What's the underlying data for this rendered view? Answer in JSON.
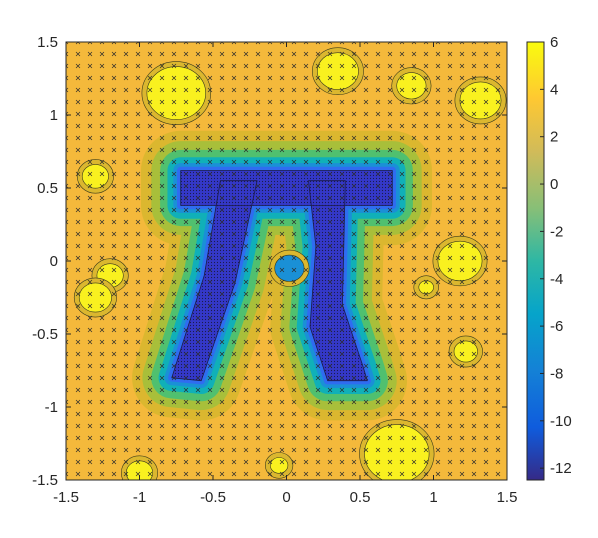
{
  "chart_data": {
    "type": "heatmap",
    "subtype": "filled-contour",
    "title": "",
    "xlabel": "",
    "ylabel": "",
    "xlim": [
      -1.5,
      1.5
    ],
    "ylim": [
      -1.5,
      1.5
    ],
    "x_ticks": [
      "-1.5",
      "-1",
      "-0.5",
      "0",
      "0.5",
      "1",
      "1.5"
    ],
    "y_ticks": [
      "1.5",
      "1",
      "0.5",
      "0",
      "-0.5",
      "-1",
      "-1.5"
    ],
    "x_tick_values": [
      -1.5,
      -1,
      -0.5,
      0,
      0.5,
      1,
      1.5
    ],
    "y_tick_values": [
      1.5,
      1,
      0.5,
      0,
      -0.5,
      -1,
      -1.5
    ],
    "colorbar": {
      "limits": [
        -12.5,
        6
      ],
      "tick_values": [
        6,
        4,
        2,
        0,
        -2,
        -4,
        -6,
        -8,
        -10,
        -12
      ],
      "tick_labels": [
        "6",
        "4",
        "2",
        "0",
        "-2",
        "-4",
        "-6",
        "-8",
        "-10",
        "-12"
      ],
      "colormap": "parula"
    },
    "contour_levels": [
      {
        "min": 3,
        "color": "#f4b93b"
      },
      {
        "min": 2,
        "color": "#dbb72f"
      },
      {
        "min": 0,
        "color": "#a8bf3a"
      },
      {
        "min": -2,
        "color": "#50c06f"
      },
      {
        "min": -4,
        "color": "#10b0b8"
      },
      {
        "min": -6,
        "color": "#1a90d6"
      },
      {
        "min": -9,
        "color": "#2f6cf0"
      },
      {
        "min": -11,
        "color": "#3438c8"
      }
    ],
    "pi_shape": {
      "top_bar": [
        [
          -0.72,
          0.62
        ],
        [
          0.72,
          0.62
        ],
        [
          0.72,
          0.38
        ],
        [
          -0.72,
          0.38
        ]
      ],
      "left_leg": [
        [
          -0.45,
          0.55
        ],
        [
          -0.2,
          0.55
        ],
        [
          -0.35,
          -0.15
        ],
        [
          -0.58,
          -0.82
        ],
        [
          -0.78,
          -0.8
        ],
        [
          -0.56,
          -0.1
        ]
      ],
      "right_leg": [
        [
          0.15,
          0.55
        ],
        [
          0.4,
          0.55
        ],
        [
          0.38,
          -0.3
        ],
        [
          0.52,
          -0.72
        ],
        [
          0.55,
          -0.82
        ],
        [
          0.28,
          -0.82
        ],
        [
          0.16,
          -0.45
        ],
        [
          0.2,
          0.1
        ]
      ]
    },
    "blobs": [
      {
        "cx": -0.75,
        "cy": 1.15,
        "r": 0.2,
        "level": 6
      },
      {
        "cx": -1.3,
        "cy": 0.58,
        "r": 0.09,
        "level": 6
      },
      {
        "cx": 0.35,
        "cy": 1.3,
        "r": 0.14,
        "level": 6
      },
      {
        "cx": 0.85,
        "cy": 1.2,
        "r": 0.1,
        "level": 6
      },
      {
        "cx": 1.32,
        "cy": 1.1,
        "r": 0.14,
        "level": 6
      },
      {
        "cx": -1.2,
        "cy": -0.1,
        "r": 0.09,
        "level": 6
      },
      {
        "cx": -1.3,
        "cy": -0.25,
        "r": 0.11,
        "level": 6
      },
      {
        "cx": 1.18,
        "cy": 0.0,
        "r": 0.15,
        "level": 6
      },
      {
        "cx": 1.22,
        "cy": -0.62,
        "r": 0.08,
        "level": 6
      },
      {
        "cx": 0.95,
        "cy": -0.18,
        "r": 0.05,
        "level": 6
      },
      {
        "cx": 0.75,
        "cy": -1.32,
        "r": 0.22,
        "level": 6
      },
      {
        "cx": -1.0,
        "cy": -1.45,
        "r": 0.09,
        "level": 6
      },
      {
        "cx": -0.05,
        "cy": -1.4,
        "r": 0.06,
        "level": 6
      },
      {
        "cx": 0.02,
        "cy": -0.05,
        "r": 0.1,
        "level": -4
      }
    ]
  }
}
